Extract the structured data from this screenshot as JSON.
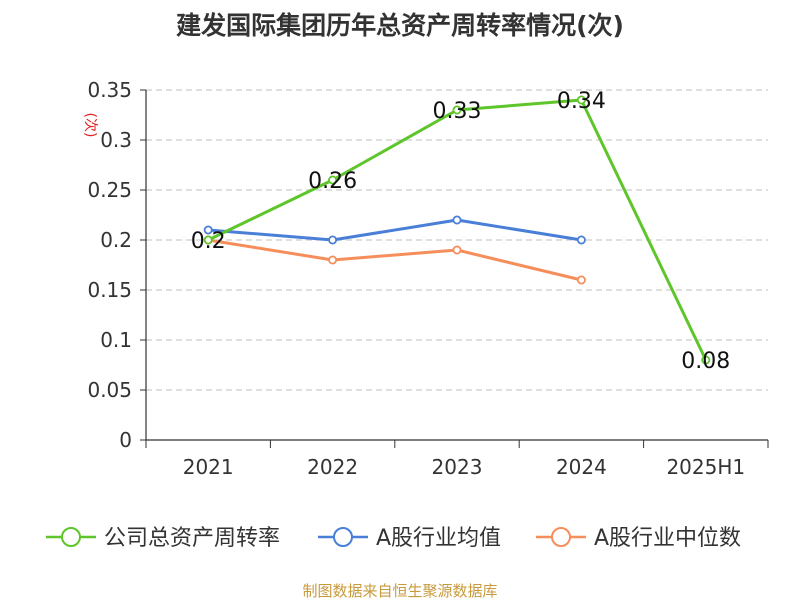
{
  "chart_data": {
    "type": "line",
    "title": "建发国际集团历年总资产周转率情况(次)",
    "ylabel": "(次)",
    "xlabel": "",
    "categories": [
      "2021",
      "2022",
      "2023",
      "2024",
      "2025H1"
    ],
    "ylim": [
      0,
      0.35
    ],
    "yticks": [
      0,
      0.05,
      0.1,
      0.15,
      0.2,
      0.25,
      0.3,
      0.35
    ],
    "ytick_labels": [
      "0",
      "0.05",
      "0.1",
      "0.15",
      "0.2",
      "0.25",
      "0.3",
      "0.35"
    ],
    "grid": true,
    "legend_position": "bottom",
    "series": [
      {
        "name": "公司总资产周转率",
        "color": "#5ec52b",
        "values": [
          0.2,
          0.26,
          0.33,
          0.34,
          0.08
        ],
        "labels": [
          "0.2",
          "0.26",
          "0.33",
          "0.34",
          "0.08"
        ],
        "show_labels": true
      },
      {
        "name": "A股行业均值",
        "color": "#4a7fd8",
        "values": [
          0.21,
          0.2,
          0.22,
          0.2,
          null
        ],
        "show_labels": false
      },
      {
        "name": "A股行业中位数",
        "color": "#f58e5a",
        "values": [
          0.2,
          0.18,
          0.19,
          0.16,
          null
        ],
        "show_labels": false
      }
    ]
  },
  "footer": {
    "source": "制图数据来自恒生聚源数据库"
  },
  "colors": {
    "title": "#333333",
    "axis": "#333333",
    "grid": "#cccccc",
    "ylabel": "#e02020",
    "source": "#c89a3c"
  }
}
